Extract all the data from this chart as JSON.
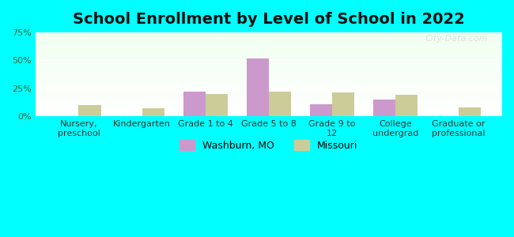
{
  "title": "School Enrollment by Level of School in 2022",
  "categories": [
    "Nursery,\npreschool",
    "Kindergarten",
    "Grade 1 to 4",
    "Grade 5 to 8",
    "Grade 9 to\n12",
    "College\nundergrad",
    "Graduate or\nprofessional"
  ],
  "washburn_values": [
    0,
    0,
    22,
    52,
    11,
    15,
    0
  ],
  "missouri_values": [
    10,
    7,
    20,
    22,
    21,
    19,
    8
  ],
  "washburn_color": "#cc99cc",
  "missouri_color": "#cccc99",
  "background_outer": "#00ffff",
  "ylim": [
    0,
    75
  ],
  "yticks": [
    0,
    25,
    50,
    75
  ],
  "legend_labels": [
    "Washburn, MO",
    "Missouri"
  ],
  "bar_width": 0.35,
  "title_fontsize": 14,
  "tick_fontsize": 8,
  "legend_fontsize": 9,
  "watermark": "City-Data.com"
}
